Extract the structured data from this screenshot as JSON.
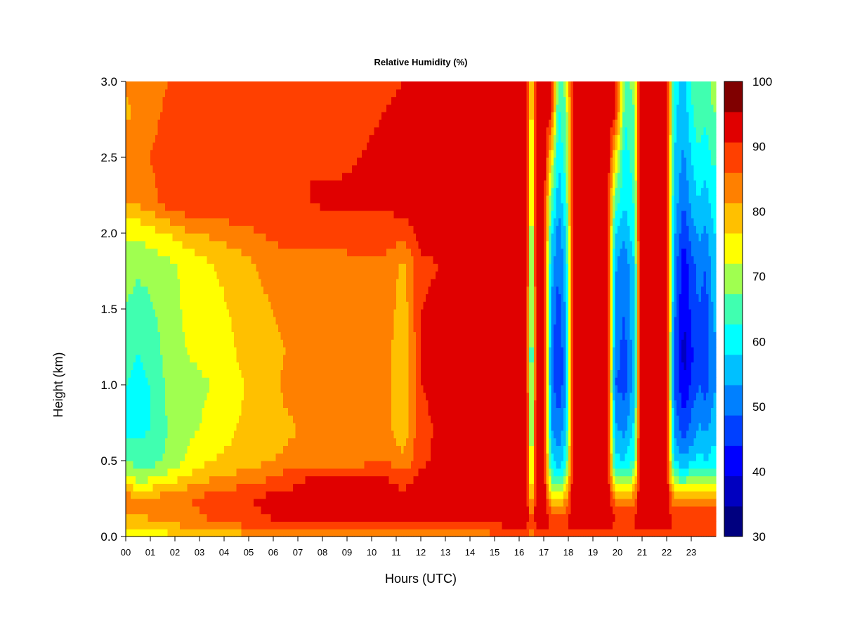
{
  "chart_data": {
    "type": "heatmap",
    "title": "Relative Humidity (%)",
    "xlabel": "Hours (UTC)",
    "ylabel": "Height (km)",
    "xlim": [
      0,
      24
    ],
    "ylim": [
      0,
      3
    ],
    "x_tick_labels": [
      "00",
      "01",
      "02",
      "03",
      "04",
      "05",
      "06",
      "07",
      "08",
      "09",
      "10",
      "11",
      "12",
      "13",
      "14",
      "15",
      "16",
      "17",
      "18",
      "19",
      "20",
      "21",
      "22",
      "23"
    ],
    "y_tick_labels": [
      "0.0",
      "0.5",
      "1.0",
      "1.5",
      "2.0",
      "2.5",
      "3.0"
    ],
    "y_ticks": [
      0,
      0.5,
      1.0,
      1.5,
      2.0,
      2.5,
      3.0
    ],
    "colorbar": {
      "levels": [
        30,
        35,
        40,
        45,
        50,
        55,
        60,
        65,
        70,
        75,
        80,
        85,
        90,
        95,
        100
      ],
      "label_values": [
        "30",
        "40",
        "50",
        "60",
        "70",
        "80",
        "90",
        "100"
      ],
      "colors": [
        "#00007f",
        "#0000c0",
        "#0000ff",
        "#0040ff",
        "#0080ff",
        "#00c0ff",
        "#00ffff",
        "#40ffb0",
        "#a0ff50",
        "#ffff00",
        "#ffc000",
        "#ff8000",
        "#ff4000",
        "#e00000",
        "#800000"
      ]
    },
    "heights_km": [
      0.0,
      0.1,
      0.25,
      0.4,
      0.5,
      0.7,
      1.0,
      1.2,
      1.5,
      1.8,
      2.0,
      2.2,
      2.5,
      2.8,
      3.0
    ],
    "profiles": [
      {
        "hour": 0.0,
        "rh": [
          75,
          84,
          88,
          76,
          70,
          64,
          65,
          66,
          70,
          72,
          76,
          86,
          88,
          84,
          86
        ]
      },
      {
        "hour": 0.5,
        "rh": [
          75,
          84,
          86,
          72,
          68,
          64,
          64,
          65,
          68,
          71,
          76,
          86,
          88,
          86,
          88
        ]
      },
      {
        "hour": 1.0,
        "rh": [
          76,
          85,
          86,
          73,
          68,
          65,
          65,
          66,
          69,
          72,
          78,
          88,
          90,
          88,
          88
        ]
      },
      {
        "hour": 1.7,
        "rh": [
          78,
          86,
          88,
          76,
          71,
          70,
          71,
          72,
          73,
          74,
          80,
          92,
          93,
          91,
          90
        ]
      },
      {
        "hour": 2.5,
        "rh": [
          78,
          88,
          90,
          80,
          76,
          74,
          74,
          75,
          76,
          76,
          84,
          94,
          94,
          93,
          92
        ]
      },
      {
        "hour": 3.5,
        "rh": [
          80,
          90,
          92,
          84,
          80,
          76,
          75,
          76,
          78,
          80,
          86,
          95,
          94,
          92,
          92
        ]
      },
      {
        "hour": 4.5,
        "rh": [
          82,
          92,
          94,
          86,
          82,
          80,
          79,
          80,
          81,
          82,
          88,
          94,
          92,
          92,
          93
        ]
      },
      {
        "hour": 5.5,
        "rh": [
          84,
          94,
          96,
          88,
          84,
          82,
          82,
          83,
          84,
          86,
          90,
          94,
          93,
          92,
          92
        ]
      },
      {
        "hour": 6.5,
        "rh": [
          86,
          96,
          97,
          92,
          86,
          84,
          86,
          85,
          86,
          88,
          92,
          95,
          94,
          93,
          94
        ]
      },
      {
        "hour": 7.5,
        "rh": [
          86,
          96,
          98,
          95,
          88,
          86,
          88,
          87,
          88,
          88,
          92,
          95,
          95,
          94,
          94
        ]
      },
      {
        "hour": 8.5,
        "rh": [
          86,
          96,
          98,
          96,
          88,
          86,
          87,
          86,
          87,
          88,
          92,
          96,
          94,
          94,
          94
        ]
      },
      {
        "hour": 9.5,
        "rh": [
          86,
          96,
          98,
          95,
          88,
          86,
          88,
          87,
          88,
          89,
          93,
          96,
          95,
          94,
          94
        ]
      },
      {
        "hour": 10.5,
        "rh": [
          86,
          96,
          98,
          95,
          90,
          87,
          88,
          88,
          89,
          89,
          93,
          96,
          96,
          95,
          94
        ]
      },
      {
        "hour": 11.3,
        "rh": [
          86,
          96,
          97,
          92,
          86,
          82,
          80,
          80,
          82,
          84,
          92,
          97,
          97,
          96,
          95
        ]
      },
      {
        "hour": 12.0,
        "rh": [
          86,
          96,
          98,
          96,
          94,
          94,
          95,
          95,
          95,
          94,
          97,
          98,
          98,
          98,
          98
        ]
      },
      {
        "hour": 13.5,
        "rh": [
          86,
          96,
          99,
          99,
          98,
          97,
          97,
          97,
          97,
          96,
          98,
          99,
          99,
          99,
          99
        ]
      },
      {
        "hour": 15.0,
        "rh": [
          88,
          97,
          99,
          99,
          98,
          98,
          98,
          97,
          97,
          97,
          99,
          99,
          99,
          99,
          99
        ]
      },
      {
        "hour": 16.3,
        "rh": [
          90,
          98,
          99,
          99,
          99,
          99,
          99,
          99,
          99,
          99,
          99,
          99,
          99,
          99,
          99
        ]
      },
      {
        "hour": 16.5,
        "rh": [
          88,
          92,
          80,
          72,
          68,
          66,
          62,
          60,
          62,
          64,
          66,
          70,
          72,
          74,
          74
        ]
      },
      {
        "hour": 16.7,
        "rh": [
          90,
          98,
          99,
          99,
          99,
          99,
          99,
          99,
          99,
          99,
          99,
          99,
          99,
          99,
          99
        ]
      },
      {
        "hour": 17.0,
        "rh": [
          90,
          98,
          99,
          99,
          99,
          99,
          99,
          99,
          99,
          99,
          99,
          99,
          99,
          99,
          99
        ]
      },
      {
        "hour": 17.3,
        "rh": [
          90,
          96,
          82,
          68,
          62,
          56,
          52,
          52,
          54,
          58,
          62,
          68,
          80,
          96,
          99
        ]
      },
      {
        "hour": 17.6,
        "rh": [
          90,
          96,
          80,
          62,
          56,
          52,
          46,
          45,
          48,
          50,
          52,
          56,
          60,
          64,
          66
        ]
      },
      {
        "hour": 17.9,
        "rh": [
          90,
          96,
          84,
          70,
          64,
          58,
          54,
          54,
          56,
          58,
          60,
          64,
          68,
          70,
          72
        ]
      },
      {
        "hour": 18.2,
        "rh": [
          92,
          98,
          99,
          99,
          99,
          99,
          99,
          99,
          99,
          99,
          99,
          99,
          99,
          99,
          99
        ]
      },
      {
        "hour": 19.6,
        "rh": [
          92,
          98,
          99,
          99,
          99,
          99,
          99,
          99,
          99,
          99,
          99,
          99,
          99,
          99,
          99
        ]
      },
      {
        "hour": 19.9,
        "rh": [
          90,
          96,
          88,
          70,
          62,
          56,
          50,
          52,
          54,
          56,
          60,
          68,
          80,
          97,
          99
        ]
      },
      {
        "hour": 20.3,
        "rh": [
          90,
          96,
          86,
          68,
          60,
          54,
          48,
          48,
          50,
          52,
          56,
          60,
          62,
          66,
          68
        ]
      },
      {
        "hour": 20.7,
        "rh": [
          90,
          96,
          88,
          74,
          66,
          62,
          58,
          58,
          60,
          60,
          64,
          66,
          68,
          70,
          72
        ]
      },
      {
        "hour": 20.9,
        "rh": [
          92,
          98,
          99,
          99,
          99,
          99,
          99,
          99,
          99,
          99,
          99,
          99,
          99,
          99,
          99
        ]
      },
      {
        "hour": 22.0,
        "rh": [
          92,
          98,
          99,
          99,
          99,
          99,
          99,
          99,
          99,
          99,
          99,
          99,
          99,
          99,
          99
        ]
      },
      {
        "hour": 22.3,
        "rh": [
          88,
          96,
          86,
          68,
          60,
          54,
          50,
          50,
          52,
          54,
          56,
          58,
          60,
          62,
          64
        ]
      },
      {
        "hour": 22.7,
        "rh": [
          88,
          96,
          84,
          66,
          56,
          48,
          40,
          38,
          40,
          42,
          46,
          50,
          54,
          56,
          58
        ]
      },
      {
        "hour": 23.0,
        "rh": [
          88,
          96,
          86,
          68,
          58,
          52,
          46,
          44,
          46,
          48,
          52,
          56,
          60,
          64,
          66
        ]
      },
      {
        "hour": 23.3,
        "rh": [
          88,
          96,
          86,
          70,
          62,
          56,
          50,
          48,
          50,
          52,
          56,
          60,
          64,
          68,
          70
        ]
      },
      {
        "hour": 23.6,
        "rh": [
          88,
          96,
          86,
          68,
          60,
          54,
          48,
          46,
          48,
          50,
          54,
          58,
          62,
          66,
          68
        ]
      },
      {
        "hour": 23.9,
        "rh": [
          88,
          96,
          86,
          70,
          62,
          58,
          54,
          54,
          56,
          58,
          60,
          62,
          66,
          70,
          72
        ]
      }
    ]
  }
}
